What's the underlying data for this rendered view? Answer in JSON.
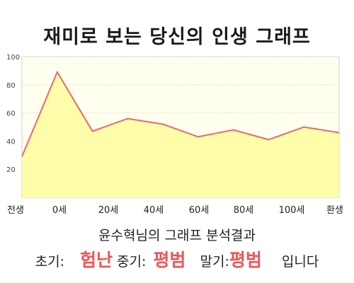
{
  "title": "재미로 보는 당신의 인생 그래프",
  "chart_data": {
    "type": "area",
    "x_labels": [
      "전생",
      "0세",
      "20세",
      "40세",
      "60세",
      "80세",
      "100세",
      "환생"
    ],
    "values": [
      29,
      89,
      47,
      56,
      52,
      43,
      48,
      41,
      50,
      46
    ],
    "y_ticks": [
      "20",
      "40",
      "60",
      "80",
      "100"
    ],
    "ylim": [
      0,
      100
    ],
    "grid": true,
    "line_color": "#e86a6a",
    "fill_color": "#fffcaa",
    "plot_bg": "#fffff0"
  },
  "summary": {
    "title": "윤수혁님의 그래프 분석결과",
    "early_label": "초기:",
    "early_value": "험난",
    "mid_label": "중기:",
    "mid_value": "평범",
    "late_label": "말기:",
    "late_value": "평범",
    "ending": "입니다"
  }
}
